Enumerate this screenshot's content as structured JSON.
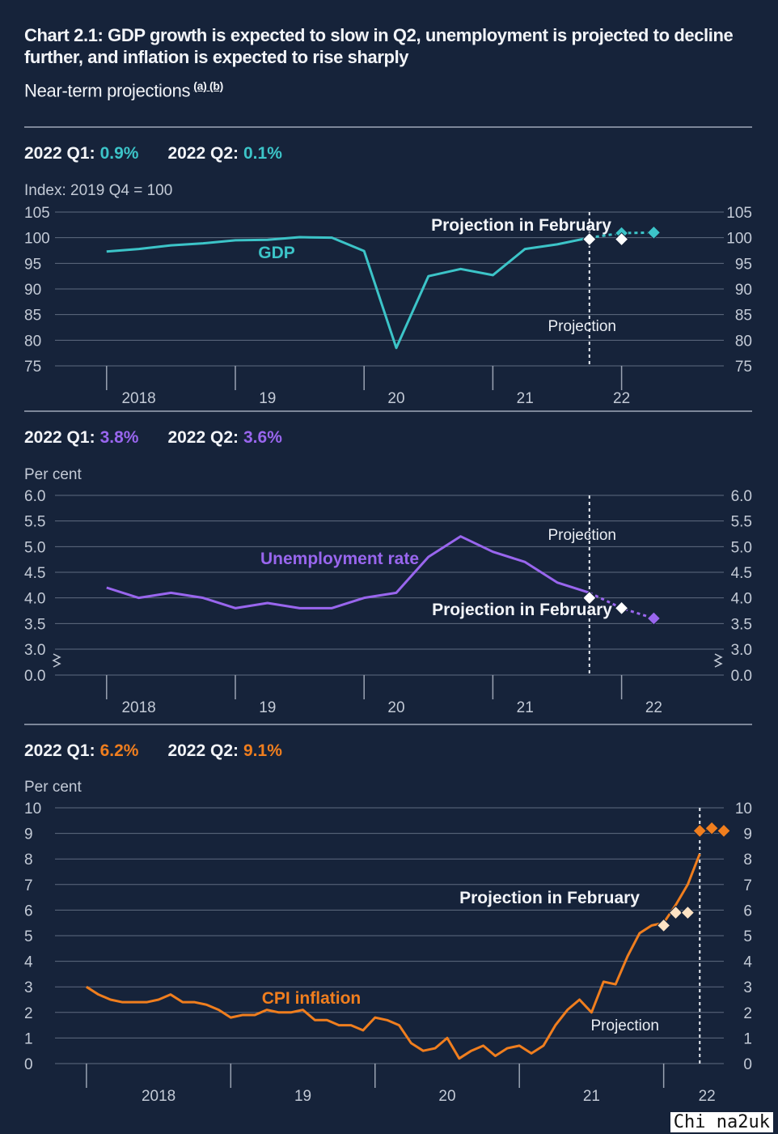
{
  "title": "Chart 2.1: GDP growth is expected to slow in Q2, unemployment is projected to decline further, and inflation is expected to rise sharply",
  "subtitle": "Near-term projections",
  "footnotes": "(a) (b)",
  "watermark": "Chi na2uk",
  "colors": {
    "gdp": "#3cc4c8",
    "unemployment": "#9966ee",
    "cpi": "#f07e1e",
    "february": "#ffffff",
    "cpi_february": "#fde3c4"
  },
  "panels": [
    {
      "q1_label": "2022 Q1:",
      "q1_value": "0.9%",
      "q2_label": "2022 Q2:",
      "q2_value": "0.1%",
      "unit": "Index: 2019 Q4 = 100"
    },
    {
      "q1_label": "2022 Q1:",
      "q1_value": "3.8%",
      "q2_label": "2022 Q2:",
      "q2_value": "3.6%",
      "unit": "Per cent"
    },
    {
      "q1_label": "2022 Q1:",
      "q1_value": "6.2%",
      "q2_label": "2022 Q2:",
      "q2_value": "9.1%",
      "unit": "Per cent"
    }
  ],
  "chart_data": [
    {
      "type": "line",
      "ylabel": "Index: 2019 Q4 = 100",
      "ylim": [
        75,
        105
      ],
      "yticks": [
        75,
        80,
        85,
        90,
        95,
        100,
        105
      ],
      "xlim": [
        2017.75,
        2022.75
      ],
      "xticks": [
        {
          "label": "2018",
          "x": 2018.25
        },
        {
          "label": "19",
          "x": 2019.25
        },
        {
          "label": "20",
          "x": 2020.25
        },
        {
          "label": "21",
          "x": 2021.25
        },
        {
          "label": "22",
          "x": 2022.0
        }
      ],
      "year_boundaries": [
        2018,
        2019,
        2020,
        2021,
        2022
      ],
      "projection_x": 2021.75,
      "grid": true,
      "series": [
        {
          "name": "GDP",
          "x": [
            2018.0,
            2018.25,
            2018.5,
            2018.75,
            2019.0,
            2019.25,
            2019.5,
            2019.75,
            2020.0,
            2020.25,
            2020.5,
            2020.75,
            2021.0,
            2021.25,
            2021.5,
            2021.75
          ],
          "y": [
            97.3,
            97.8,
            98.5,
            98.9,
            99.5,
            99.6,
            100.1,
            100.0,
            97.4,
            78.5,
            92.5,
            93.9,
            92.7,
            97.8,
            98.7,
            100.0
          ]
        },
        {
          "name": "Projection",
          "x": [
            2021.75,
            2022.0,
            2022.25
          ],
          "y": [
            100.0,
            100.9,
            101.0
          ]
        },
        {
          "name": "Projection in February",
          "x": [
            2021.75,
            2022.0
          ],
          "y": [
            99.7,
            99.7
          ]
        }
      ],
      "annotations": [
        {
          "text": "GDP"
        },
        {
          "text": "Projection in February"
        },
        {
          "text": "Projection"
        }
      ]
    },
    {
      "type": "line",
      "ylabel": "Per cent",
      "ylim": [
        3.0,
        6.0
      ],
      "yticks": [
        "0.0",
        "3.0",
        "3.5",
        "4.0",
        "4.5",
        "5.0",
        "5.5",
        "6.0"
      ],
      "axis_break": true,
      "xlim": [
        2017.75,
        2022.75
      ],
      "xticks": [
        {
          "label": "2018",
          "x": 2018.25
        },
        {
          "label": "19",
          "x": 2019.25
        },
        {
          "label": "20",
          "x": 2020.25
        },
        {
          "label": "21",
          "x": 2021.25
        },
        {
          "label": "22",
          "x": 2022.25
        }
      ],
      "year_boundaries": [
        2018,
        2019,
        2020,
        2021,
        2022
      ],
      "projection_x": 2021.75,
      "grid": true,
      "series": [
        {
          "name": "Unemployment rate",
          "x": [
            2018.0,
            2018.25,
            2018.5,
            2018.75,
            2019.0,
            2019.25,
            2019.5,
            2019.75,
            2020.0,
            2020.25,
            2020.5,
            2020.75,
            2021.0,
            2021.25,
            2021.5,
            2021.75
          ],
          "y": [
            4.2,
            4.0,
            4.1,
            4.0,
            3.8,
            3.9,
            3.8,
            3.8,
            4.0,
            4.1,
            4.8,
            5.2,
            4.9,
            4.7,
            4.3,
            4.1
          ]
        },
        {
          "name": "Projection",
          "x": [
            2021.75,
            2022.0,
            2022.25
          ],
          "y": [
            4.1,
            3.8,
            3.6
          ]
        },
        {
          "name": "Projection in February",
          "x": [
            2021.75,
            2022.0
          ],
          "y": [
            4.0,
            3.8
          ]
        }
      ],
      "annotations": [
        {
          "text": "Unemployment rate"
        },
        {
          "text": "Projection in February"
        },
        {
          "text": "Projection"
        }
      ]
    },
    {
      "type": "line",
      "ylabel": "Per cent",
      "ylim": [
        0,
        10
      ],
      "yticks": [
        0,
        1,
        2,
        3,
        4,
        5,
        6,
        7,
        8,
        9,
        10
      ],
      "xlim": [
        2017.9167,
        2022.4167
      ],
      "xticks": [
        {
          "label": "2018",
          "x": 2018.5
        },
        {
          "label": "19",
          "x": 2019.5
        },
        {
          "label": "20",
          "x": 2020.5
        },
        {
          "label": "21",
          "x": 2021.5
        },
        {
          "label": "22",
          "x": 2022.3
        }
      ],
      "year_boundaries": [
        2018,
        2019,
        2020,
        2021,
        2022
      ],
      "projection_x": 2022.25,
      "grid": true,
      "series": [
        {
          "name": "CPI inflation",
          "x": [
            2018.0,
            2018.0833,
            2018.1667,
            2018.25,
            2018.3333,
            2018.4167,
            2018.5,
            2018.5833,
            2018.6667,
            2018.75,
            2018.8333,
            2018.9167,
            2019.0,
            2019.0833,
            2019.1667,
            2019.25,
            2019.3333,
            2019.4167,
            2019.5,
            2019.5833,
            2019.6667,
            2019.75,
            2019.8333,
            2019.9167,
            2020.0,
            2020.0833,
            2020.1667,
            2020.25,
            2020.3333,
            2020.4167,
            2020.5,
            2020.5833,
            2020.6667,
            2020.75,
            2020.8333,
            2020.9167,
            2021.0,
            2021.0833,
            2021.1667,
            2021.25,
            2021.3333,
            2021.4167,
            2021.5,
            2021.5833,
            2021.6667,
            2021.75,
            2021.8333,
            2021.9167,
            2022.0,
            2022.0833,
            2022.1667,
            2022.25
          ],
          "y": [
            3.0,
            2.7,
            2.5,
            2.4,
            2.4,
            2.4,
            2.5,
            2.7,
            2.4,
            2.4,
            2.3,
            2.1,
            1.8,
            1.9,
            1.9,
            2.1,
            2.0,
            2.0,
            2.1,
            1.7,
            1.7,
            1.5,
            1.5,
            1.3,
            1.8,
            1.7,
            1.5,
            0.8,
            0.5,
            0.6,
            1.0,
            0.2,
            0.5,
            0.7,
            0.3,
            0.6,
            0.7,
            0.4,
            0.7,
            1.5,
            2.1,
            2.5,
            2.0,
            3.2,
            3.1,
            4.2,
            5.1,
            5.4,
            5.5,
            6.2,
            7.0,
            8.2
          ]
        },
        {
          "name": "Projection",
          "x": [
            2022.25,
            2022.3333,
            2022.4167
          ],
          "y": [
            9.1,
            9.2,
            9.1
          ]
        },
        {
          "name": "Projection in February",
          "x": [
            2022.0,
            2022.0833,
            2022.1667
          ],
          "y": [
            5.4,
            5.9,
            5.9
          ]
        }
      ],
      "annotations": [
        {
          "text": "CPI inflation"
        },
        {
          "text": "Projection in February"
        },
        {
          "text": "Projection"
        }
      ]
    }
  ]
}
